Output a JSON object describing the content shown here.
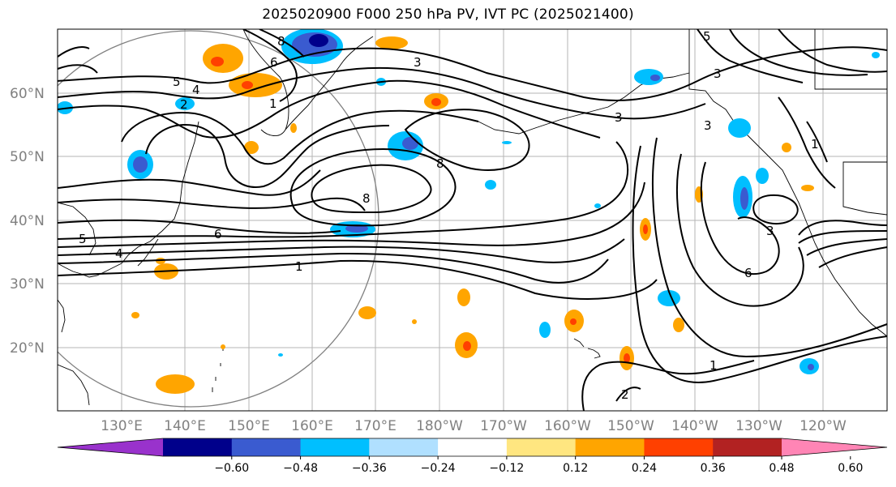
{
  "title": "2025020900 F000 250 hPa PV, IVT PC (2025021400)",
  "map": {
    "lat_labels": [
      "60°N",
      "50°N",
      "40°N",
      "30°N",
      "20°N"
    ],
    "lon_labels": [
      "130°E",
      "140°E",
      "150°E",
      "160°E",
      "170°E",
      "180°W",
      "170°W",
      "160°W",
      "150°W",
      "140°W",
      "130°W",
      "120°W"
    ],
    "contour_labels": [
      "8",
      "6",
      "5",
      "4",
      "2",
      "1",
      "3",
      "8",
      "8",
      "6",
      "1",
      "3",
      "5",
      "3",
      "1",
      "3",
      "6",
      "3",
      "2",
      "5",
      "4",
      "1"
    ]
  },
  "colorbar": {
    "ticks": [
      "−0.60",
      "−0.48",
      "−0.36",
      "−0.24",
      "−0.12",
      "0.12",
      "0.24",
      "0.36",
      "0.48",
      "0.60"
    ],
    "colors": [
      "#9932cc",
      "#00008b",
      "#3a5bd0",
      "#00bfff",
      "#b0e0ff",
      "#ffffff",
      "#ffe680",
      "#ffa500",
      "#ff4000",
      "#b22222",
      "#ff85b5"
    ]
  }
}
